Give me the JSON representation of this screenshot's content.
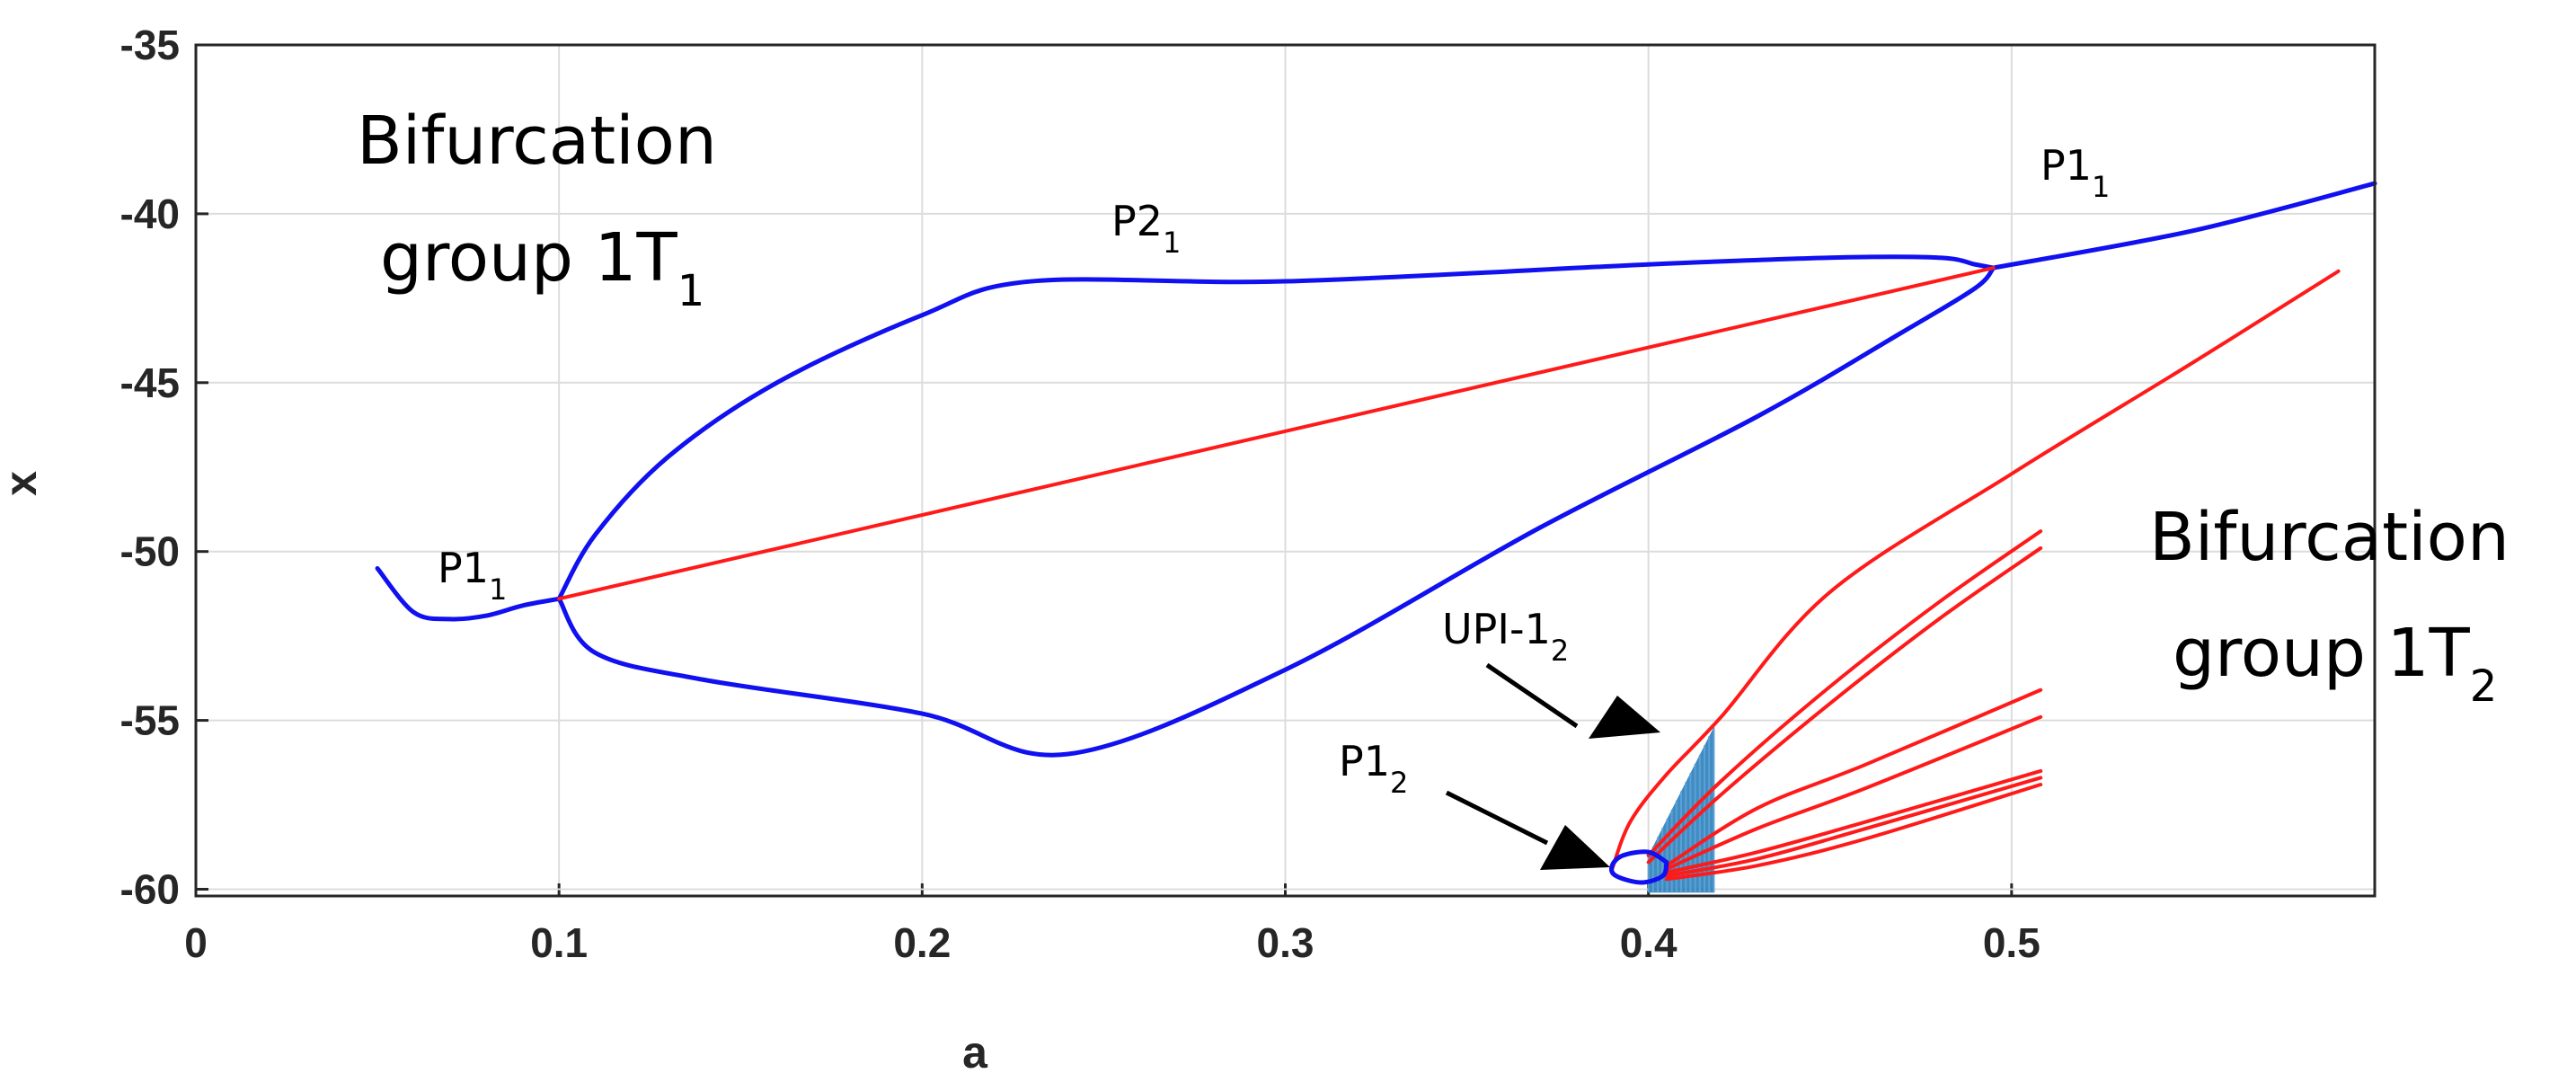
{
  "chart_data": {
    "type": "line",
    "xlabel": "a",
    "ylabel": "x",
    "xlim": [
      0,
      0.6
    ],
    "ylim": [
      -60.2,
      -35
    ],
    "xticks": [
      0,
      0.1,
      0.2,
      0.3,
      0.4,
      0.5
    ],
    "xtick_labels": [
      "0",
      "0.1",
      "0.2",
      "0.3",
      "0.4",
      "0.5"
    ],
    "yticks": [
      -35,
      -40,
      -45,
      -50,
      -55,
      -60
    ],
    "ytick_labels": [
      "-35",
      "-40",
      "-45",
      "-50",
      "-55",
      "-60"
    ],
    "grid": true,
    "colors": {
      "stable": "#1010f0",
      "unstable": "#ff1a1a",
      "chaos": "#1f77b4",
      "arrow": "#000000"
    },
    "series": [
      {
        "color": "#1010f0",
        "x": [
          0.05,
          0.06,
          0.07,
          0.08,
          0.09,
          0.1
        ],
        "y": [
          -50.5,
          -51.8,
          -52.0,
          -51.9,
          -51.6,
          -51.4
        ]
      },
      {
        "color": "#1010f0",
        "x": [
          0.1,
          0.11,
          0.13,
          0.16,
          0.2,
          0.23,
          0.3,
          0.4,
          0.45,
          0.48,
          0.49,
          0.495
        ],
        "y": [
          -51.4,
          -49.5,
          -47.2,
          -45.0,
          -43.0,
          -42.0,
          -42.0,
          -41.5,
          -41.3,
          -41.3,
          -41.5,
          -41.6
        ]
      },
      {
        "color": "#1010f0",
        "x": [
          0.1,
          0.11,
          0.14,
          0.2,
          0.24,
          0.3,
          0.37,
          0.43,
          0.47,
          0.49,
          0.495
        ],
        "y": [
          -51.4,
          -53.0,
          -53.8,
          -54.8,
          -56.0,
          -53.5,
          -49.3,
          -46.0,
          -43.5,
          -42.2,
          -41.6
        ]
      },
      {
        "color": "#1010f0",
        "x": [
          0.495,
          0.55,
          0.6
        ],
        "y": [
          -41.6,
          -40.5,
          -39.1
        ]
      },
      {
        "color": "#ff1a1a",
        "x": [
          0.1,
          0.495
        ],
        "y": [
          -51.4,
          -41.6
        ]
      },
      {
        "color": "#ff1a1a",
        "x": [
          0.39,
          0.395,
          0.405,
          0.42,
          0.45,
          0.5,
          0.55,
          0.59
        ],
        "y": [
          -59.4,
          -58.0,
          -56.6,
          -54.9,
          -51.2,
          -47.7,
          -44.4,
          -41.7
        ]
      },
      {
        "color": "#ff1a1a",
        "x": [
          0.4,
          0.42,
          0.45,
          0.48,
          0.508
        ],
        "y": [
          -59.0,
          -56.8,
          -54.0,
          -51.5,
          -49.4
        ]
      },
      {
        "color": "#ff1a1a",
        "x": [
          0.4,
          0.42,
          0.45,
          0.48,
          0.508
        ],
        "y": [
          -59.2,
          -57.2,
          -54.5,
          -52.0,
          -49.9
        ]
      },
      {
        "color": "#ff1a1a",
        "x": [
          0.405,
          0.43,
          0.46,
          0.508
        ],
        "y": [
          -59.3,
          -57.6,
          -56.3,
          -54.1
        ]
      },
      {
        "color": "#ff1a1a",
        "x": [
          0.405,
          0.43,
          0.46,
          0.508
        ],
        "y": [
          -59.4,
          -58.2,
          -57.0,
          -54.9
        ]
      },
      {
        "color": "#ff1a1a",
        "x": [
          0.405,
          0.43,
          0.46,
          0.508
        ],
        "y": [
          -59.5,
          -58.9,
          -58.0,
          -56.5
        ]
      },
      {
        "color": "#ff1a1a",
        "x": [
          0.405,
          0.43,
          0.46,
          0.508
        ],
        "y": [
          -59.6,
          -59.1,
          -58.2,
          -56.7
        ]
      },
      {
        "color": "#ff1a1a",
        "x": [
          0.405,
          0.43,
          0.46,
          0.508
        ],
        "y": [
          -59.7,
          -59.3,
          -58.5,
          -56.9
        ]
      },
      {
        "color": "#1010f0",
        "x": [
          0.405,
          0.4,
          0.393,
          0.39,
          0.391,
          0.398,
          0.404,
          0.405
        ],
        "y": [
          -59.2,
          -58.9,
          -59.0,
          -59.3,
          -59.6,
          -59.8,
          -59.6,
          -59.2
        ]
      }
    ],
    "chaos_band": {
      "x_start": 0.4,
      "x_end": 0.418,
      "y_top_start": -59.0,
      "y_top_end": -55.2,
      "y_bottom": -60.1
    },
    "annotations": {
      "group1_line1": "Bifurcation",
      "group1_line2": "group 1T",
      "group1_sub": "1",
      "group2_line1": "Bifurcation",
      "group2_line2": "group 1T",
      "group2_sub": "2",
      "p1_left": "P1",
      "p1_left_sub": "1",
      "p2_top": "P2",
      "p2_top_sub": "1",
      "p1_right": "P1",
      "p1_right_sub": "1",
      "upi": "UPI-1",
      "upi_sub": "2",
      "p1_bottom": "P1",
      "p1_bottom_sub": "2"
    }
  }
}
